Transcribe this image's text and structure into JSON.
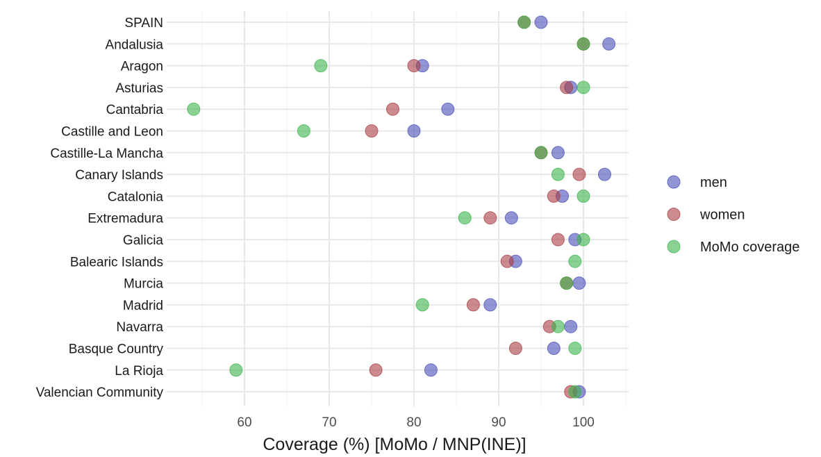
{
  "chart_data": {
    "type": "scatter",
    "xlabel": "Coverage (%) [MoMo / MNP(INE)]",
    "ylabel": "",
    "xlim": [
      51,
      106
    ],
    "xticks": [
      60,
      70,
      80,
      90,
      100
    ],
    "grid": true,
    "legend_position": "right",
    "categories": [
      "SPAIN",
      "Andalusia",
      "Aragon",
      "Asturias",
      "Cantabria",
      "Castille and Leon",
      "Castille-La Mancha",
      "Canary Islands",
      "Catalonia",
      "Extremadura",
      "Galicia",
      "Balearic Islands",
      "Murcia",
      "Madrid",
      "Navarra",
      "Basque Country",
      "La Rioja",
      "Valencian Community"
    ],
    "series": [
      {
        "name": "men",
        "color": "#4a4fb8",
        "values": [
          95,
          103,
          81,
          98.5,
          84,
          80,
          97,
          102.5,
          97.5,
          91.5,
          99,
          92,
          99.5,
          89,
          98.5,
          96.5,
          82,
          99.5
        ]
      },
      {
        "name": "women",
        "color": "#a83e45",
        "values": [
          93,
          100,
          80,
          98,
          77.5,
          75,
          95,
          99.5,
          96.5,
          89,
          97,
          91,
          98,
          87,
          96,
          92,
          75.5,
          98.5
        ]
      },
      {
        "name": "MoMo coverage",
        "color": "#3cb44b",
        "values": [
          93,
          100,
          69,
          100,
          54,
          67,
          95,
          97,
          100,
          86,
          100,
          99,
          98,
          81,
          97,
          99,
          59,
          99
        ]
      }
    ]
  }
}
